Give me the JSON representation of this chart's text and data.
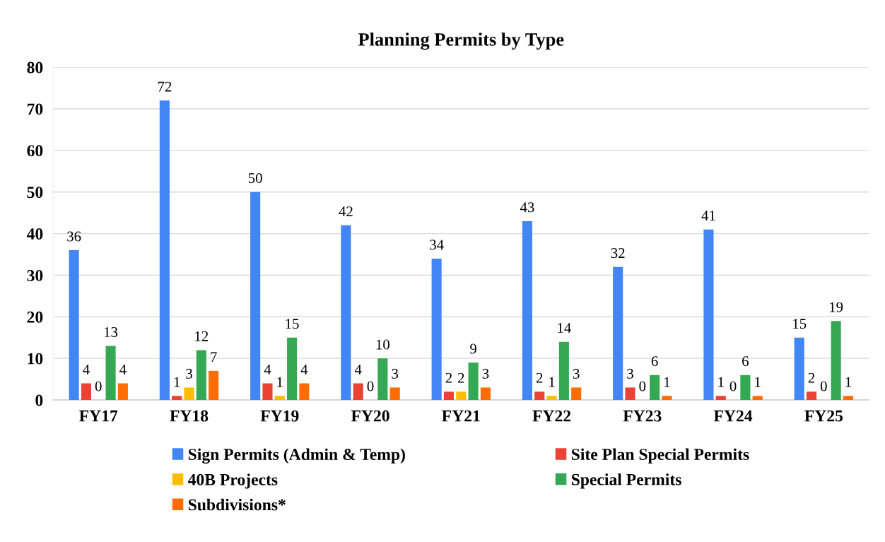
{
  "chart_data": {
    "type": "bar",
    "title": "Planning Permits by Type",
    "categories": [
      "FY17",
      "FY18",
      "FY19",
      "FY20",
      "FY21",
      "FY22",
      "FY23",
      "FY24",
      "FY25"
    ],
    "series": [
      {
        "name": "Sign Permits (Admin & Temp)",
        "color": "#4285f4",
        "values": [
          36,
          72,
          50,
          42,
          34,
          43,
          32,
          41,
          15
        ]
      },
      {
        "name": "Site Plan Special Permits",
        "color": "#ea4335",
        "values": [
          4,
          1,
          4,
          4,
          2,
          2,
          3,
          1,
          2
        ]
      },
      {
        "name": "40B Projects",
        "color": "#fbbc04",
        "values": [
          0,
          3,
          1,
          0,
          2,
          1,
          0,
          0,
          0
        ]
      },
      {
        "name": "Special Permits",
        "color": "#34a853",
        "values": [
          13,
          12,
          15,
          10,
          9,
          14,
          6,
          6,
          19
        ]
      },
      {
        "name": "Subdivisions*",
        "color": "#ff6d01",
        "values": [
          4,
          7,
          4,
          3,
          3,
          3,
          1,
          1,
          1
        ]
      }
    ],
    "ylim": [
      0,
      80
    ],
    "yticks": [
      0,
      10,
      20,
      30,
      40,
      50,
      60,
      70,
      80
    ],
    "grid": "y",
    "legend": "bottom",
    "data_labels": true
  }
}
